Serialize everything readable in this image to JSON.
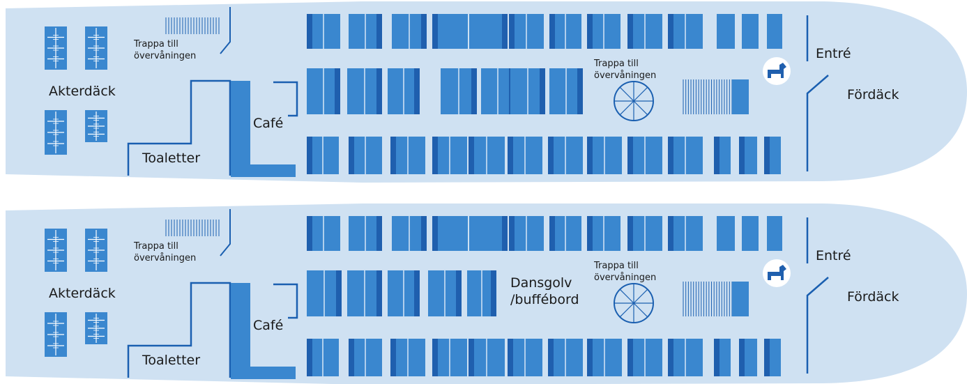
{
  "colors": {
    "hull": "#cfe1f2",
    "seat_light": "#3a87cf",
    "seat_dark": "#1f5fae",
    "line": "#1a5fb0",
    "white": "#ffffff"
  },
  "decks": [
    {
      "labels": {
        "akterdack": "Akterdäck",
        "stairs_left": [
          "Trappa till",
          "övervåningen"
        ],
        "stairs_mid": [
          "Trappa till",
          "övervåningen"
        ],
        "toaletter": "Toaletter",
        "cafe": "Café",
        "entre": "Entré",
        "fordack": "Fördäck",
        "dance": []
      },
      "icons": [
        "dog-icon",
        "staircase-icon",
        "spiral-stair-icon",
        "life-raft-icon"
      ]
    },
    {
      "labels": {
        "akterdack": "Akterdäck",
        "stairs_left": [
          "Trappa till",
          "övervåningen"
        ],
        "stairs_mid": [
          "Trappa till",
          "övervåningen"
        ],
        "toaletter": "Toaletter",
        "cafe": "Café",
        "entre": "Entré",
        "fordack": "Fördäck",
        "dance": [
          "Dansgolv",
          "/buffébord"
        ]
      },
      "icons": [
        "dog-icon",
        "staircase-icon",
        "spiral-stair-icon",
        "life-raft-icon"
      ]
    }
  ]
}
